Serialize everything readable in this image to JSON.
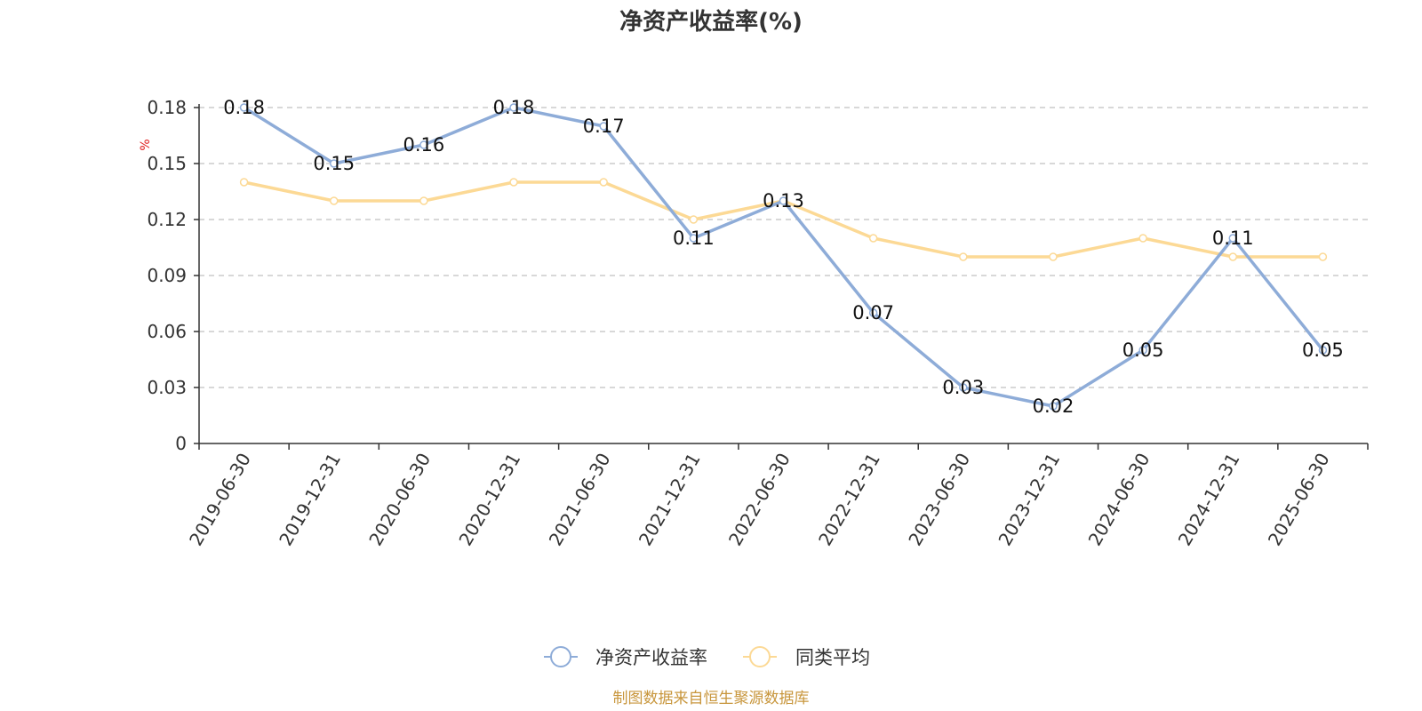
{
  "chart_data": {
    "type": "line",
    "title": "净资产收益率(%)",
    "ylabel": "%",
    "xlabel": "",
    "categories": [
      "2019-06-30",
      "2019-12-31",
      "2020-06-30",
      "2020-12-31",
      "2021-06-30",
      "2021-12-31",
      "2022-06-30",
      "2022-12-31",
      "2023-06-30",
      "2023-12-31",
      "2024-06-30",
      "2024-12-31",
      "2025-06-30"
    ],
    "ylim": [
      0,
      0.18
    ],
    "yticks": [
      0,
      0.03,
      0.06,
      0.09,
      0.12,
      0.15,
      0.18
    ],
    "ytick_labels": [
      "0",
      "0.03",
      "0.06",
      "0.09",
      "0.12",
      "0.15",
      "0.18"
    ],
    "grid": true,
    "legend_position": "bottom-center",
    "series": [
      {
        "name": "净资产收益率",
        "color": "#8eacd8",
        "values": [
          0.18,
          0.15,
          0.16,
          0.18,
          0.17,
          0.11,
          0.13,
          0.07,
          0.03,
          0.02,
          0.05,
          0.11,
          0.05
        ],
        "labels": [
          "0.18",
          "0.15",
          "0.16",
          "0.18",
          "0.17",
          "0.11",
          "0.13",
          "0.07",
          "0.03",
          "0.02",
          "0.05",
          "0.11",
          "0.05"
        ]
      },
      {
        "name": "同类平均",
        "color": "#fcd995",
        "values": [
          0.14,
          0.13,
          0.13,
          0.14,
          0.14,
          0.12,
          0.13,
          0.11,
          0.1,
          0.1,
          0.11,
          0.1,
          0.1
        ]
      }
    ]
  },
  "source": {
    "text": "制图数据来自恒生聚源数据库",
    "color": "#c8963c"
  },
  "colors": {
    "unit_label": "#e02020",
    "axis": "#333333",
    "grid": "#cccccc"
  }
}
